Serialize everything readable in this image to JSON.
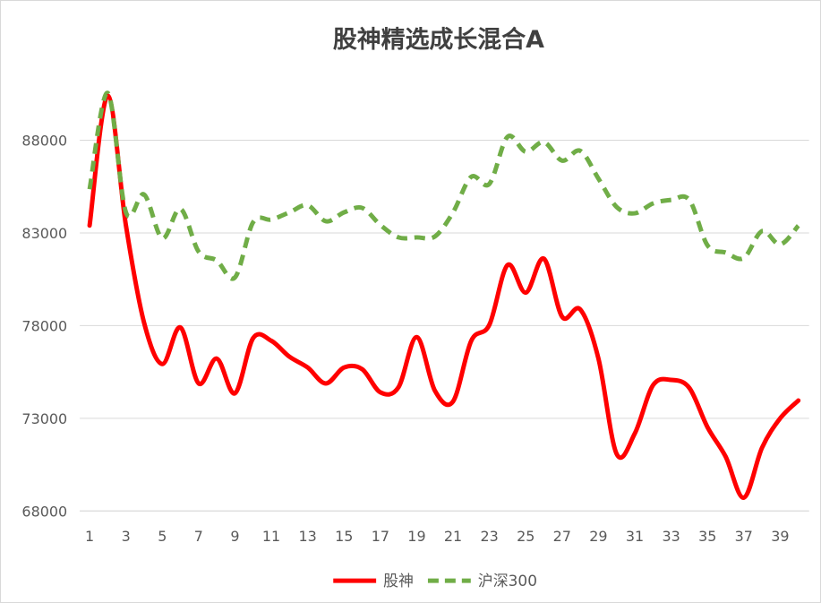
{
  "chart_data": {
    "type": "line",
    "title": "股神精选成长混合A",
    "xlabel": "",
    "ylabel": "",
    "x": [
      1,
      2,
      3,
      4,
      5,
      6,
      7,
      8,
      9,
      10,
      11,
      12,
      13,
      14,
      15,
      16,
      17,
      18,
      19,
      20,
      21,
      22,
      23,
      24,
      25,
      26,
      27,
      28,
      29,
      30,
      31,
      32,
      33,
      34,
      35,
      36,
      37,
      38,
      39,
      40
    ],
    "x_tick_labels": [
      "1",
      "3",
      "5",
      "7",
      "9",
      "11",
      "13",
      "15",
      "17",
      "19",
      "21",
      "23",
      "25",
      "27",
      "29",
      "31",
      "33",
      "35",
      "37",
      "39"
    ],
    "y_tick_labels": [
      "68000",
      "73000",
      "78000",
      "83000",
      "88000"
    ],
    "y_ticks": [
      68000,
      73000,
      78000,
      83000,
      88000
    ],
    "ylim": [
      68000,
      93000
    ],
    "grid": true,
    "legend_position": "bottom",
    "series": [
      {
        "name": "股神",
        "color": "#ff0000",
        "dash": "solid",
        "values": [
          83400,
          90400,
          83400,
          78150,
          75930,
          77900,
          74880,
          76220,
          74350,
          77330,
          77180,
          76320,
          75740,
          74880,
          75740,
          75650,
          74400,
          74680,
          77380,
          74490,
          73910,
          77180,
          78050,
          81270,
          79780,
          81610,
          78480,
          78870,
          76220,
          71080,
          72180,
          74780,
          75070,
          74640,
          72520,
          70930,
          68720,
          71410,
          73000,
          73960
        ]
      },
      {
        "name": "沪深300",
        "color": "#70ad47",
        "dash": "dashed",
        "values": [
          85360,
          90550,
          84110,
          85070,
          82710,
          84300,
          81990,
          81510,
          80600,
          83580,
          83720,
          84110,
          84490,
          83630,
          84110,
          84350,
          83430,
          82760,
          82760,
          82810,
          84110,
          86030,
          85650,
          88190,
          87380,
          87900,
          86900,
          87430,
          85930,
          84400,
          84060,
          84590,
          84780,
          84780,
          82330,
          81940,
          81650,
          83100,
          82380,
          83390
        ]
      }
    ]
  }
}
